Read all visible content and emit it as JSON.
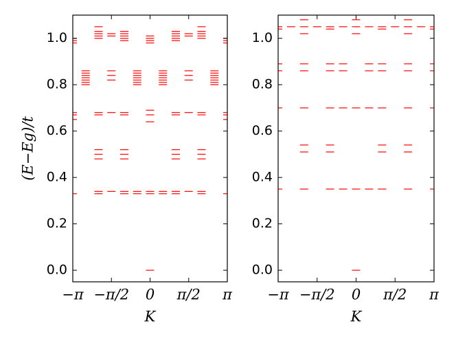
{
  "chart_data": [
    {
      "type": "dash",
      "xlabel": "K",
      "ylabel": "(E−Eg)/t",
      "color": "#ff0000",
      "xlim": [
        -3.1416,
        3.1416
      ],
      "ylim": [
        -0.05,
        1.1
      ],
      "xticks": [
        {
          "value": -3.1416,
          "label": "−π"
        },
        {
          "value": -1.5708,
          "label": "−π/2"
        },
        0,
        {
          "value": 1.5708,
          "label": "π/2"
        },
        {
          "value": 3.1416,
          "label": "π"
        }
      ],
      "yticks": [
        {
          "value": 0,
          "label": "0.0"
        },
        0.2,
        0.4,
        0.6,
        0.8,
        {
          "value": 1,
          "label": "1.0"
        }
      ],
      "x": [
        -3.1416,
        -2.618,
        -2.0944,
        -1.5708,
        -1.0472,
        -0.5236,
        0,
        0.5236,
        1.0472,
        1.5708,
        2.0944,
        2.618,
        3.1416
      ],
      "values": [
        [
          0.33,
          0.65,
          0.67,
          0.68,
          0.98,
          0.99,
          1.0
        ],
        [
          0.8,
          0.81,
          0.82,
          0.83,
          0.84,
          0.85,
          0.86
        ],
        [
          0.33,
          0.34,
          0.48,
          0.5,
          0.52,
          0.67,
          0.68,
          1.0,
          1.01,
          1.02,
          1.03,
          1.05
        ],
        [
          0.34,
          0.68,
          0.82,
          0.84,
          0.86,
          1.01,
          1.02
        ],
        [
          0.33,
          0.34,
          0.48,
          0.5,
          0.52,
          0.67,
          0.68,
          0.99,
          1.0,
          1.01,
          1.02,
          1.03
        ],
        [
          0.33,
          0.34,
          0.8,
          0.81,
          0.82,
          0.83,
          0.84,
          0.85,
          0.86
        ],
        [
          0.0,
          0.33,
          0.34,
          0.64,
          0.67,
          0.69,
          0.98,
          0.99,
          1.0,
          1.01
        ],
        [
          0.33,
          0.34,
          0.8,
          0.81,
          0.82,
          0.83,
          0.84,
          0.85,
          0.86
        ],
        [
          0.33,
          0.34,
          0.48,
          0.5,
          0.52,
          0.67,
          0.68,
          0.99,
          1.0,
          1.01,
          1.02,
          1.03
        ],
        [
          0.34,
          0.68,
          0.82,
          0.84,
          0.86,
          1.01,
          1.02
        ],
        [
          0.33,
          0.34,
          0.48,
          0.5,
          0.52,
          0.67,
          0.68,
          1.0,
          1.01,
          1.02,
          1.03,
          1.05
        ],
        [
          0.8,
          0.81,
          0.82,
          0.83,
          0.84,
          0.85,
          0.86
        ],
        [
          0.33,
          0.65,
          0.67,
          0.68,
          0.98,
          0.99,
          1.0
        ]
      ]
    },
    {
      "type": "dash",
      "xlabel": "K",
      "color": "#ff0000",
      "xlim": [
        -3.1416,
        3.1416
      ],
      "ylim": [
        -0.05,
        1.1
      ],
      "xticks": [
        {
          "value": -3.1416,
          "label": "−π"
        },
        {
          "value": -1.5708,
          "label": "−π/2"
        },
        0,
        {
          "value": 1.5708,
          "label": "π/2"
        },
        {
          "value": 3.1416,
          "label": "π"
        }
      ],
      "yticks": [
        {
          "value": 0,
          "label": "0.0"
        },
        0.2,
        0.4,
        0.6,
        0.8,
        {
          "value": 1,
          "label": "1.0"
        }
      ],
      "x": [
        -3.1416,
        -2.618,
        -2.0944,
        -1.5708,
        -1.0472,
        -0.5236,
        0,
        0.5236,
        1.0472,
        1.5708,
        2.0944,
        2.618,
        3.1416
      ],
      "values": [
        [
          0.35,
          0.7,
          0.86,
          0.89,
          1.04,
          1.05
        ],
        [
          1.05
        ],
        [
          0.35,
          0.51,
          0.54,
          0.7,
          0.86,
          0.89,
          1.02,
          1.05,
          1.08
        ],
        [
          1.05
        ],
        [
          0.35,
          0.51,
          0.54,
          0.7,
          0.86,
          0.89,
          1.04,
          1.05
        ],
        [
          0.35,
          0.7,
          0.86,
          0.89,
          1.05
        ],
        [
          0.0,
          0.35,
          0.7,
          1.02,
          1.05,
          1.08
        ],
        [
          0.35,
          0.7,
          0.86,
          0.89,
          1.05
        ],
        [
          0.35,
          0.51,
          0.54,
          0.7,
          0.86,
          0.89,
          1.04,
          1.05
        ],
        [
          1.05
        ],
        [
          0.35,
          0.51,
          0.54,
          0.7,
          0.86,
          0.89,
          1.02,
          1.05,
          1.08
        ],
        [
          1.05
        ],
        [
          0.35,
          0.7,
          0.86,
          0.89,
          1.04,
          1.05
        ]
      ]
    }
  ]
}
